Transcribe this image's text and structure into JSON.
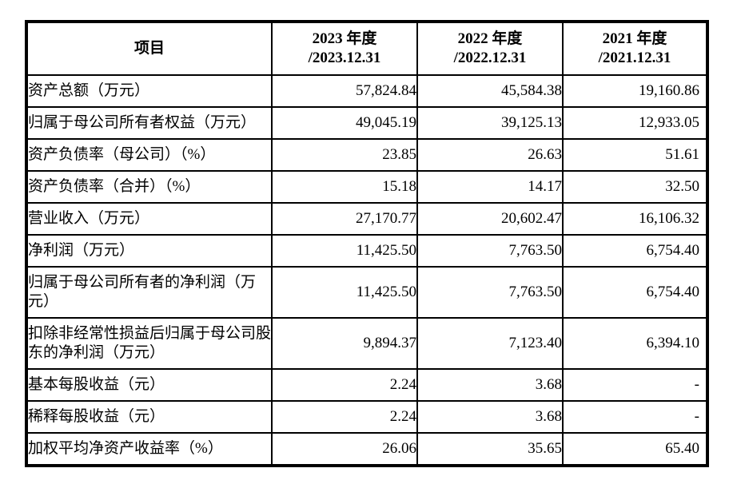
{
  "document": {
    "colors": {
      "background": "#ffffff",
      "border": "#000000",
      "text": "#000000"
    },
    "table": {
      "header": {
        "item_col": "项目",
        "year_cols": [
          {
            "line1": "2023 年度",
            "line2": "/2023.12.31"
          },
          {
            "line1": "2022 年度",
            "line2": "/2022.12.31"
          },
          {
            "line1": "2021 年度",
            "line2": "/2021.12.31"
          }
        ]
      },
      "rows": [
        {
          "label": "资产总额（万元）",
          "values": [
            "57,824.84",
            "45,584.38",
            "19,160.86"
          ]
        },
        {
          "label": "归属于母公司所有者权益（万元）",
          "values": [
            "49,045.19",
            "39,125.13",
            "12,933.05"
          ]
        },
        {
          "label": "资产负债率（母公司）（%）",
          "values": [
            "23.85",
            "26.63",
            "51.61"
          ]
        },
        {
          "label": "资产负债率（合并）（%）",
          "values": [
            "15.18",
            "14.17",
            "32.50"
          ]
        },
        {
          "label": "营业收入（万元）",
          "values": [
            "27,170.77",
            "20,602.47",
            "16,106.32"
          ]
        },
        {
          "label": "净利润（万元）",
          "values": [
            "11,425.50",
            "7,763.50",
            "6,754.40"
          ]
        },
        {
          "label": "归属于母公司所有者的净利润（万元）",
          "values": [
            "11,425.50",
            "7,763.50",
            "6,754.40"
          ]
        },
        {
          "label": "扣除非经常性损益后归属于母公司股东的净利润（万元）",
          "values": [
            "9,894.37",
            "7,123.40",
            "6,394.10"
          ]
        },
        {
          "label": "基本每股收益（元）",
          "values": [
            "2.24",
            "3.68",
            "-"
          ]
        },
        {
          "label": "稀释每股收益（元）",
          "values": [
            "2.24",
            "3.68",
            "-"
          ]
        },
        {
          "label": "加权平均净资产收益率（%）",
          "values": [
            "26.06",
            "35.65",
            "65.40"
          ]
        }
      ]
    }
  }
}
